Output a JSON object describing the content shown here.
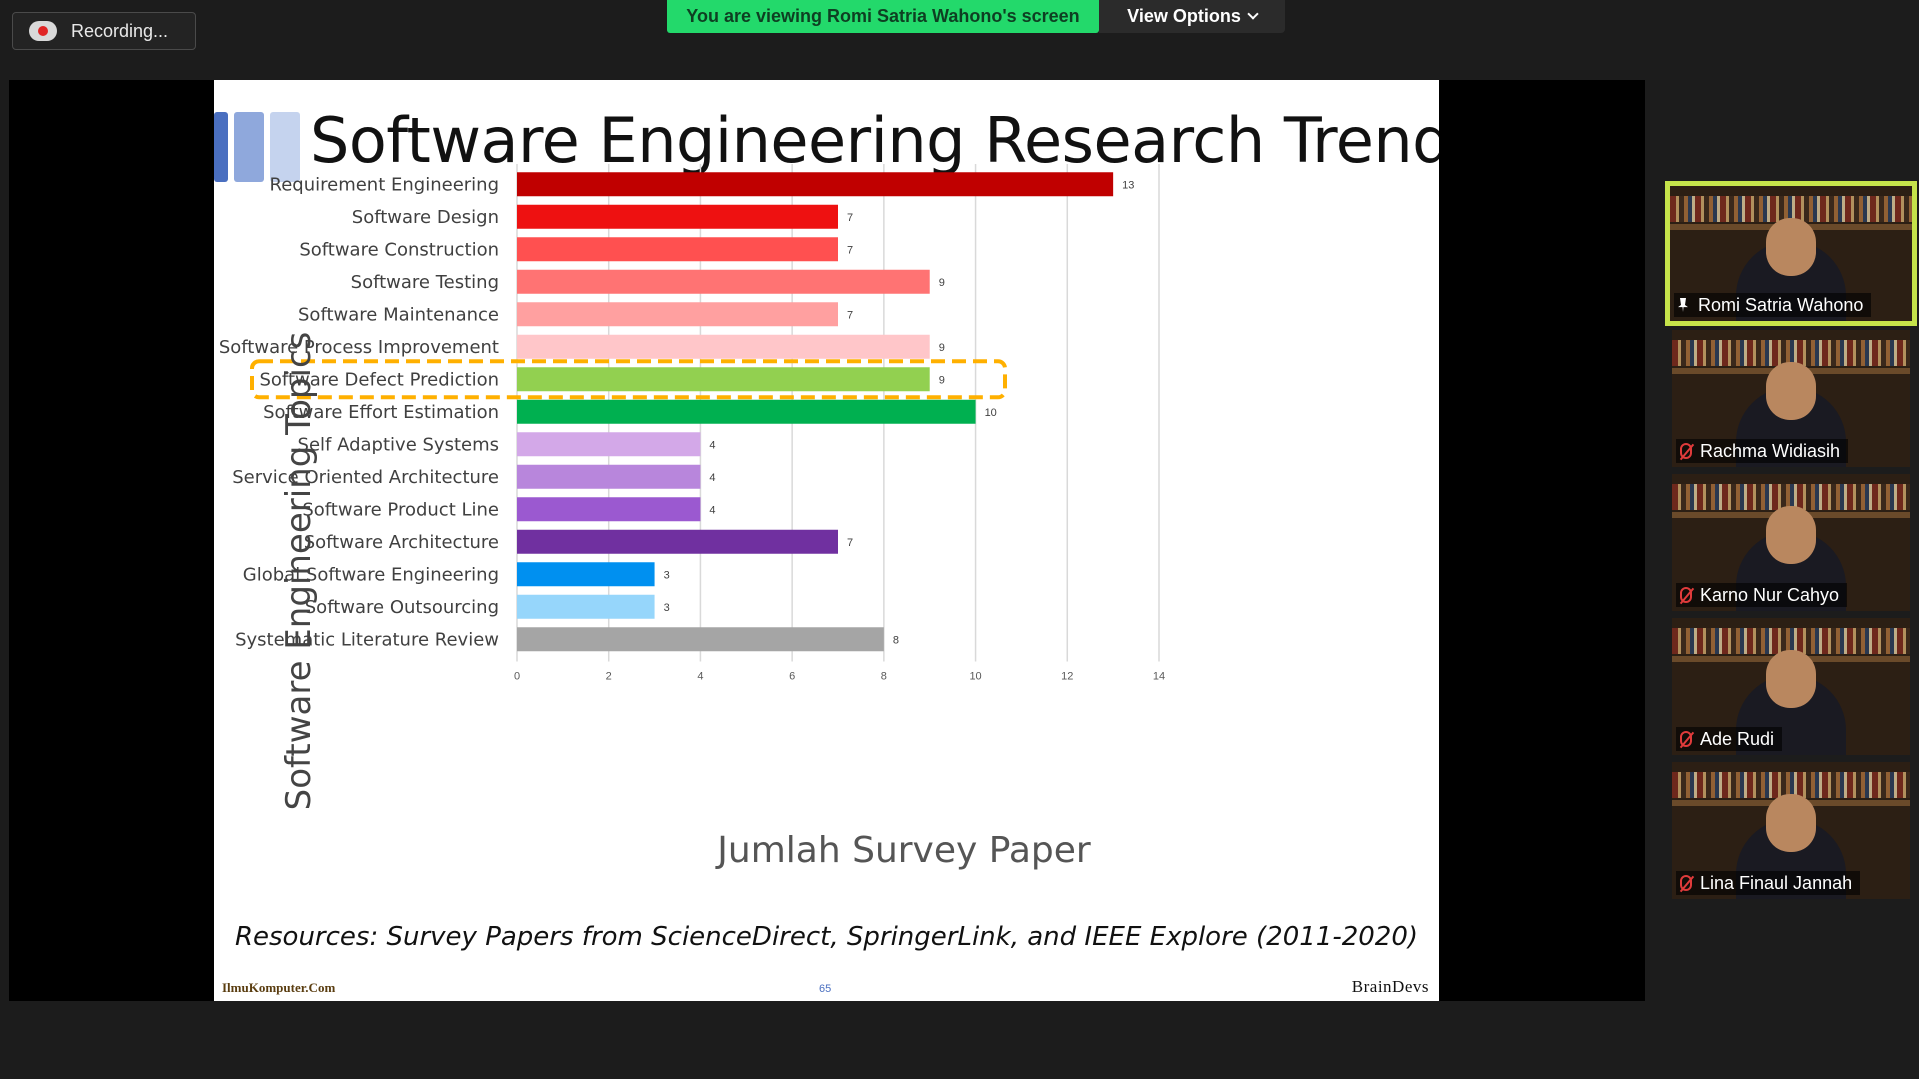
{
  "recording": {
    "label": "Recording..."
  },
  "banner": {
    "viewing_text": "You are viewing Romi Satria Wahono's screen",
    "view_options_label": "View Options"
  },
  "slide": {
    "title": "Software Engineering Research Trends",
    "resources": "Resources: Survey Papers from ScienceDirect, SpringerLink, and IEEE Explore (2011-2020)",
    "footer_left": "IlmuKomputer.Com",
    "page_number": "65",
    "footer_right": "BrainDevs"
  },
  "chart_data": {
    "type": "bar",
    "orientation": "horizontal",
    "title": "",
    "ylabel": "Software Engineering Topics",
    "xlabel": "Jumlah Survey Paper",
    "xlim": [
      0,
      14
    ],
    "xticks": [
      0,
      2,
      4,
      6,
      8,
      10,
      12,
      14
    ],
    "grid": true,
    "categories": [
      "Requirement Engineering",
      "Software Design",
      "Software Construction",
      "Software Testing",
      "Software Maintenance",
      "Software Process Improvement",
      "Software Defect Prediction",
      "Software Effort Estimation",
      "Self Adaptive Systems",
      "Service Oriented Architecture",
      "Software Product Line",
      "Software Architecture",
      "Global Software Engineering",
      "Software Outsourcing",
      "Systematic Literature Review"
    ],
    "values": [
      13,
      7,
      7,
      9,
      7,
      9,
      9,
      10,
      4,
      4,
      4,
      7,
      3,
      3,
      8
    ],
    "colors": [
      "#c00000",
      "#ee1111",
      "#ff5050",
      "#ff7373",
      "#ffa0a0",
      "#ffc6c9",
      "#92d050",
      "#00b050",
      "#d3a8e8",
      "#b886dc",
      "#9b59d0",
      "#7030a0",
      "#0090f0",
      "#96d6fb",
      "#a5a5a5"
    ],
    "highlight": "Software Defect Prediction",
    "highlight_color": "#ffb000"
  },
  "participants": [
    {
      "name": "Romi Satria Wahono",
      "pinned": true,
      "muted": false
    },
    {
      "name": "Rachma Widiasih",
      "pinned": false,
      "muted": true
    },
    {
      "name": "Karno Nur Cahyo",
      "pinned": false,
      "muted": true
    },
    {
      "name": "Ade Rudi",
      "pinned": false,
      "muted": true
    },
    {
      "name": "Lina Finaul Jannah",
      "pinned": false,
      "muted": true
    }
  ]
}
